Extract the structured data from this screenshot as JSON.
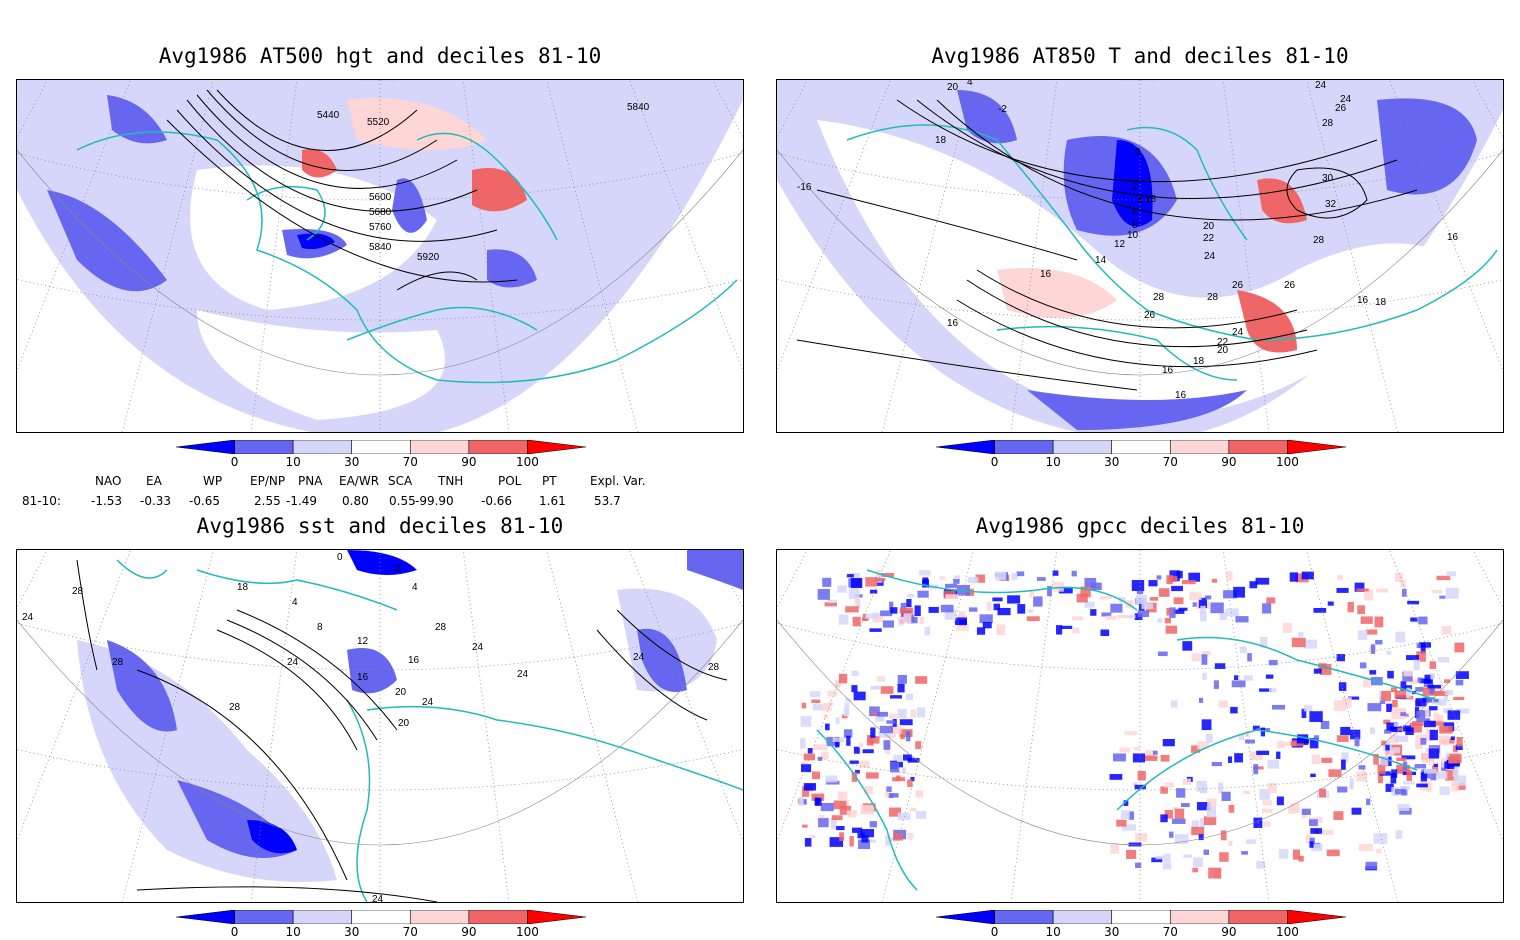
{
  "panels": [
    {
      "title": "Avg1986 AT500 hgt and deciles 81-10",
      "contour_labels": [
        "5440",
        "5520",
        "5600",
        "5680",
        "5760",
        "5840",
        "5920",
        "5840"
      ]
    },
    {
      "title": "Avg1986 AT850 T and deciles 81-10",
      "contour_labels": [
        "20",
        "4",
        "-2",
        "18",
        "-16",
        "0",
        "2",
        "4",
        "6",
        "8",
        "10",
        "12",
        "14",
        "16",
        "16",
        "18",
        "20",
        "22",
        "24",
        "26",
        "28",
        "28",
        "26",
        "24",
        "22",
        "20",
        "18",
        "16",
        "16",
        "16",
        "18",
        "24",
        "24",
        "26",
        "28",
        "30",
        "32",
        "28",
        "26",
        "16"
      ]
    },
    {
      "title": "Avg1986 sst and deciles 81-10",
      "contour_labels": [
        "28",
        "24",
        "0",
        "18",
        "4",
        "8",
        "12",
        "16",
        "20",
        "24",
        "28",
        "0",
        "4",
        "16",
        "20",
        "24",
        "28",
        "24",
        "24",
        "28",
        "28",
        "24",
        "24"
      ]
    },
    {
      "title": "Avg1986 gpcc deciles 81-10",
      "contour_labels": []
    }
  ],
  "colorbar": {
    "ticks": [
      "0",
      "10",
      "30",
      "70",
      "90",
      "100"
    ],
    "colors": [
      "#0000ff",
      "#6666f0",
      "#d6d6fa",
      "#ffffff",
      "#ffd6d6",
      "#f06666",
      "#ff0000"
    ]
  },
  "indices": {
    "headers": [
      "NAO",
      "EA",
      "WP",
      "EP/NP",
      "PNA",
      "EA/WR",
      "SCA",
      "TNH",
      "POL",
      "PT",
      "Expl. Var."
    ],
    "row_label": "81-10:",
    "values": [
      "-1.53",
      "-0.33",
      "-0.65",
      "2.55",
      "-1.49",
      "0.80",
      "0.55",
      "-99.90",
      "-0.66",
      "1.61",
      "53.7"
    ]
  },
  "colors": {
    "coast": "#22bbbb",
    "contour": "#000000",
    "grid": "#888888",
    "blue_dark": "#0000ff",
    "blue_mid": "#6666f0",
    "blue_light": "#d6d6fa",
    "red_light": "#ffd6d6",
    "red_mid": "#f06666"
  }
}
